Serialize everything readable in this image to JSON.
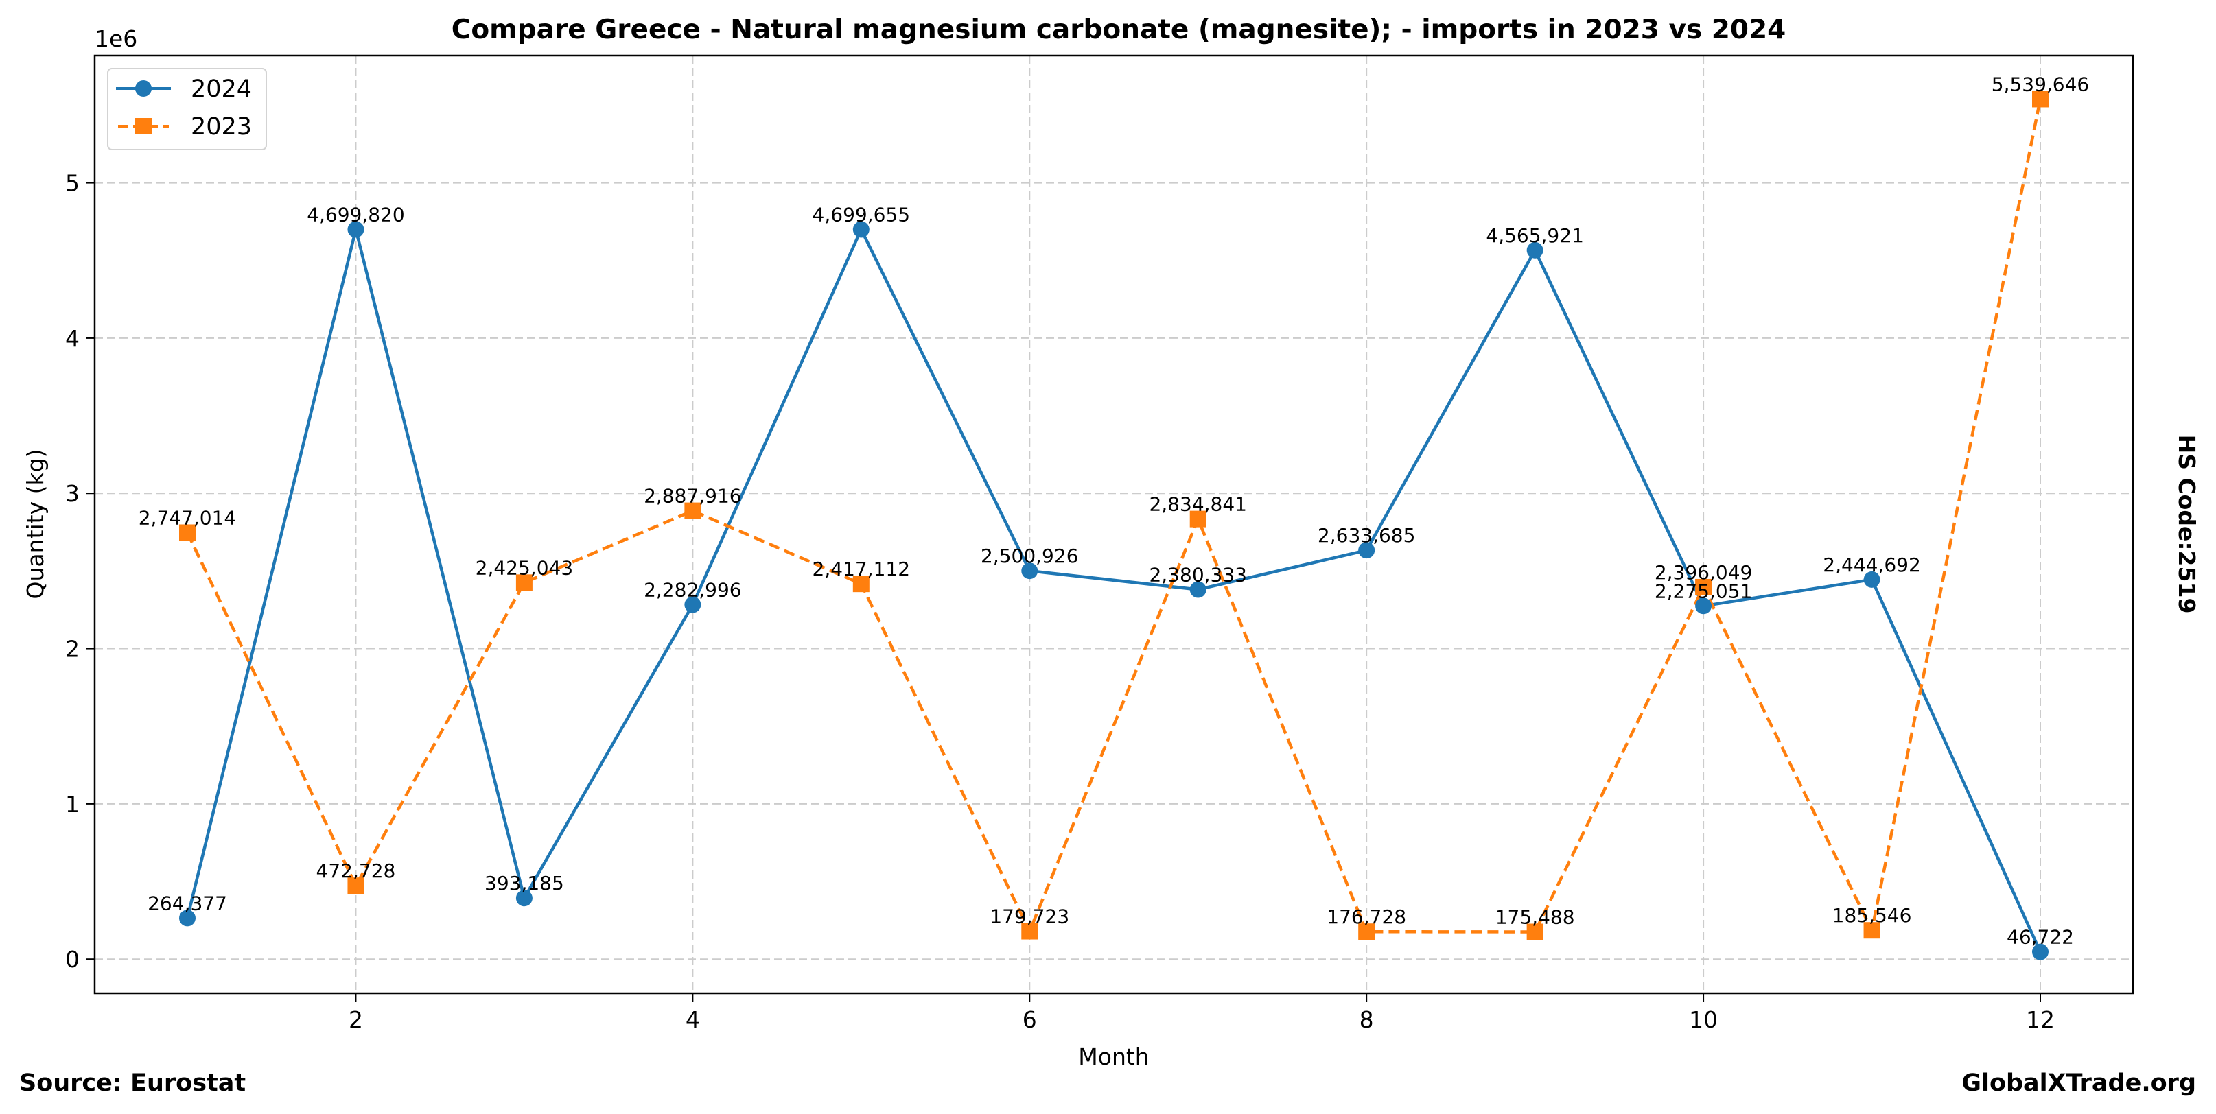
{
  "chart_data": {
    "type": "line",
    "title": "Compare Greece - Natural magnesium carbonate (magnesite); - imports in 2023 vs 2024",
    "xlabel": "Month",
    "ylabel": "Quantity (kg)",
    "y_offset_label": "1e6",
    "x": [
      1,
      2,
      3,
      4,
      5,
      6,
      7,
      8,
      9,
      10,
      11,
      12
    ],
    "xlim": [
      0.45,
      12.55
    ],
    "ylim": [
      -220000,
      5820000
    ],
    "x_ticks": [
      2,
      4,
      6,
      8,
      10,
      12
    ],
    "x_tick_labels": [
      "2",
      "4",
      "6",
      "8",
      "10",
      "12"
    ],
    "y_ticks": [
      0,
      1000000,
      2000000,
      3000000,
      4000000,
      5000000
    ],
    "y_tick_labels": [
      "0",
      "1",
      "2",
      "3",
      "4",
      "5"
    ],
    "grid": true,
    "legend_position": "top-left",
    "series": [
      {
        "name": "2024",
        "color": "#1f77b4",
        "line_style": "solid",
        "marker": "circle",
        "values": [
          264377,
          4699820,
          393185,
          2282996,
          4699655,
          2500926,
          2380333,
          2633685,
          4565921,
          2275051,
          2444692,
          46722
        ],
        "labels": [
          "264,377",
          "4,699,820",
          "393,185",
          "2,282,996",
          "4,699,655",
          "2,500,926",
          "2,380,333",
          "2,633,685",
          "4,565,921",
          "2,275,051",
          "2,444,692",
          "46,722"
        ]
      },
      {
        "name": "2023",
        "color": "#ff7f0e",
        "line_style": "dashed",
        "marker": "square",
        "values": [
          2747014,
          472728,
          2425043,
          2887916,
          2417112,
          179723,
          2834841,
          176728,
          175488,
          2396049,
          185546,
          5539646
        ],
        "labels": [
          "2,747,014",
          "472,728",
          "2,425,043",
          "2,887,916",
          "2,417,112",
          "179,723",
          "2,834,841",
          "176,728",
          "175,488",
          "2,396,049",
          "185,546",
          "5,539,646"
        ]
      }
    ],
    "annotations": {
      "right_side": "HS Code:2519",
      "source": "Source: Eurostat",
      "brand": "GlobalXTrade.org"
    }
  }
}
